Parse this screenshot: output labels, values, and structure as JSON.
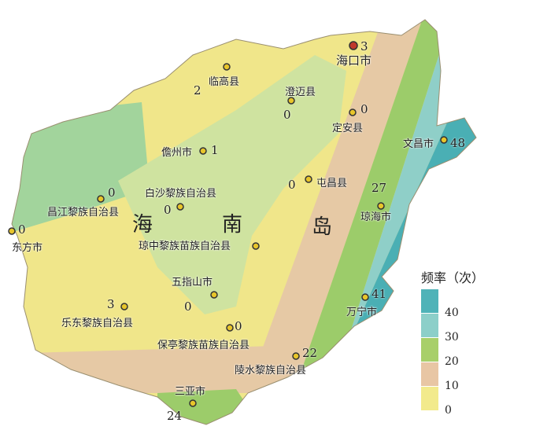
{
  "island_label": [
    "海",
    "南",
    "岛"
  ],
  "places": [
    {
      "name": "海口市",
      "value": "3"
    },
    {
      "name": "临高县",
      "value": "2"
    },
    {
      "name": "澄迈县",
      "value": "0"
    },
    {
      "name": "定安县",
      "value": "0"
    },
    {
      "name": "儋州市",
      "value": "1"
    },
    {
      "name": "文昌市",
      "value": "48"
    },
    {
      "name": "屯昌县",
      "value": "0"
    },
    {
      "name": "白沙黎族自治县",
      "value": "0"
    },
    {
      "name": "昌江黎族自治县",
      "value": "0"
    },
    {
      "name": "琼海市",
      "value": "27"
    },
    {
      "name": "东方市",
      "value": "0"
    },
    {
      "name": "琼中黎族苗族自治县",
      "value": ""
    },
    {
      "name": "五指山市",
      "value": "0"
    },
    {
      "name": "乐东黎族自治县",
      "value": "3"
    },
    {
      "name": "万宁市",
      "value": "41"
    },
    {
      "name": "保亭黎族苗族自治县",
      "value": "0"
    },
    {
      "name": "陵水黎族自治县",
      "value": "22"
    },
    {
      "name": "三亚市",
      "value": "24"
    }
  ],
  "legend": {
    "title": "频率（次）",
    "items": [
      {
        "label": "40",
        "color": "#4fb3b8"
      },
      {
        "label": "30",
        "color": "#8ccfc9"
      },
      {
        "label": "20",
        "color": "#a8cf6a"
      },
      {
        "label": "10",
        "color": "#e8c6a4"
      },
      {
        "label": "0",
        "color": "#f2ea8c"
      }
    ]
  },
  "colors": {
    "zone_0": "#f0e68a",
    "zone_10": "#e6c9a5",
    "zone_20": "#9ccc6a",
    "zone_30": "#8fcfc8",
    "zone_40": "#4aafb4",
    "mountain_green": "#cfe3a0",
    "marker": "#e8c52a",
    "capital_marker": "#c0392b"
  }
}
